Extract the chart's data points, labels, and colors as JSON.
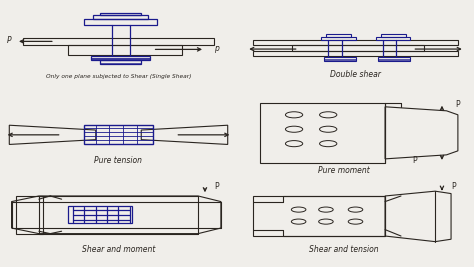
{
  "background_color": "#f0eeea",
  "labels": {
    "single_shear": "Only one plane subjected to Shear (Single Shear)",
    "double_shear": "Double shear",
    "pure_tension": "Pure tension",
    "pure_moment": "Pure moment",
    "shear_moment": "Shear and moment",
    "shear_tension": "Shear and tension"
  },
  "sketch_color": "#2a2520",
  "bolt_color": "#1a1a8c",
  "arrow_color": "#2a2520",
  "label_color": "#2a2520",
  "label_fontsize": 5.5,
  "lw_main": 0.8
}
